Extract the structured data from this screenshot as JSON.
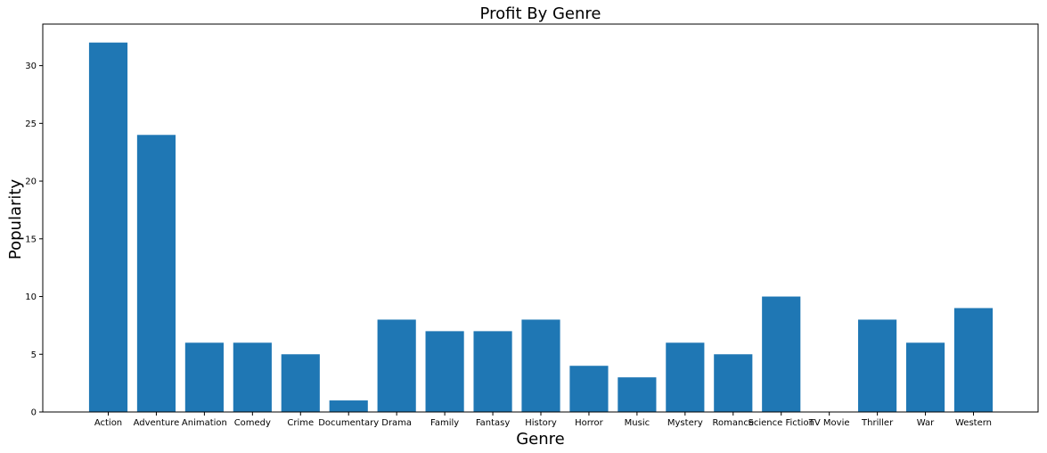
{
  "chart_data": {
    "type": "bar",
    "title": "Profit By Genre",
    "xlabel": "Genre",
    "ylabel": "Popularity",
    "categories": [
      "Action",
      "Adventure",
      "Animation",
      "Comedy",
      "Crime",
      "Documentary",
      "Drama",
      "Family",
      "Fantasy",
      "History",
      "Horror",
      "Music",
      "Mystery",
      "Romance",
      "Science Fiction",
      "TV Movie",
      "Thriller",
      "War",
      "Western"
    ],
    "values": [
      32,
      24,
      6,
      6,
      5,
      1,
      8,
      7,
      7,
      8,
      4,
      3,
      6,
      5,
      10,
      0,
      8,
      6,
      9
    ],
    "ylim": [
      0,
      33.6
    ],
    "yticks": [
      0,
      5,
      10,
      15,
      20,
      25,
      30
    ],
    "grid": false,
    "bar_color": "#1f77b4"
  }
}
